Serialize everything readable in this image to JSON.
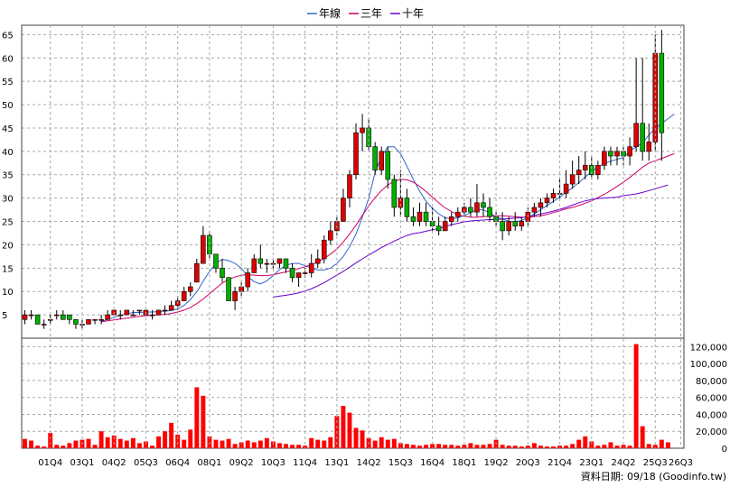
{
  "chart_data": {
    "type": "candlestick",
    "legend": [
      {
        "label": "年線",
        "color": "#3366cc"
      },
      {
        "label": "三年",
        "color": "#cc0066"
      },
      {
        "label": "十年",
        "color": "#6600cc"
      }
    ],
    "price_axis": {
      "ylim": [
        0,
        67
      ],
      "ticks": [
        5,
        10,
        15,
        20,
        25,
        30,
        35,
        40,
        45,
        50,
        55,
        60,
        65
      ]
    },
    "volume_axis": {
      "ylim": [
        0,
        130000
      ],
      "ticks": [
        "0",
        "20,000",
        "40,000",
        "60,000",
        "80,000",
        "100,000",
        "120,000"
      ],
      "tick_values": [
        0,
        20000,
        40000,
        60000,
        80000,
        100000,
        120000
      ]
    },
    "x_tick_labels": [
      "01Q4",
      "03Q1",
      "04Q2",
      "05Q3",
      "06Q4",
      "08Q1",
      "09Q2",
      "10Q3",
      "11Q4",
      "13Q1",
      "14Q2",
      "15Q3",
      "16Q4",
      "18Q1",
      "19Q2",
      "20Q3",
      "21Q4",
      "23Q1",
      "24Q2",
      "25Q3",
      "26Q3"
    ],
    "x_tick_quarters": [
      4,
      9,
      14,
      19,
      24,
      29,
      34,
      39,
      44,
      49,
      54,
      59,
      64,
      69,
      74,
      79,
      84,
      89,
      94,
      99,
      103
    ],
    "candles": [
      [
        4,
        6,
        3,
        5
      ],
      [
        5,
        6,
        4,
        5
      ],
      [
        5,
        5,
        3,
        3
      ],
      [
        3,
        4,
        2,
        3
      ],
      [
        4,
        5,
        3,
        4
      ],
      [
        5,
        6,
        4,
        5
      ],
      [
        5,
        6,
        4,
        4
      ],
      [
        5,
        5,
        3,
        4
      ],
      [
        4,
        4,
        2,
        3
      ],
      [
        3,
        4,
        2,
        3
      ],
      [
        3,
        4,
        3,
        4
      ],
      [
        4,
        4,
        3,
        4
      ],
      [
        4,
        5,
        3,
        4
      ],
      [
        4,
        6,
        4,
        5
      ],
      [
        5,
        6,
        5,
        6
      ],
      [
        5,
        6,
        4,
        5
      ],
      [
        5,
        6,
        5,
        6
      ],
      [
        5,
        6,
        5,
        5
      ],
      [
        6,
        6,
        5,
        6
      ],
      [
        5,
        6,
        5,
        6
      ],
      [
        5,
        6,
        4,
        5
      ],
      [
        5,
        6,
        5,
        6
      ],
      [
        6,
        7,
        5,
        6
      ],
      [
        6,
        8,
        6,
        7
      ],
      [
        7,
        9,
        6,
        8
      ],
      [
        8,
        11,
        8,
        10
      ],
      [
        10,
        12,
        9,
        11
      ],
      [
        12,
        17,
        12,
        16
      ],
      [
        16,
        24,
        16,
        22
      ],
      [
        22,
        23,
        17,
        18
      ],
      [
        18,
        18,
        14,
        15
      ],
      [
        15,
        17,
        12,
        13
      ],
      [
        13,
        13,
        8,
        8
      ],
      [
        8,
        11,
        6,
        10
      ],
      [
        10,
        12,
        9,
        11
      ],
      [
        11,
        15,
        10,
        14
      ],
      [
        14,
        18,
        14,
        17
      ],
      [
        17,
        20,
        15,
        16
      ],
      [
        16,
        17,
        14,
        16
      ],
      [
        16,
        17,
        15,
        16
      ],
      [
        16,
        17,
        15,
        17
      ],
      [
        17,
        17,
        14,
        15
      ],
      [
        15,
        16,
        12,
        13
      ],
      [
        13,
        14,
        11,
        14
      ],
      [
        14,
        15,
        13,
        14
      ],
      [
        14,
        18,
        13,
        16
      ],
      [
        16,
        19,
        15,
        17
      ],
      [
        17,
        22,
        16,
        21
      ],
      [
        21,
        25,
        20,
        23
      ],
      [
        23,
        26,
        22,
        25
      ],
      [
        25,
        32,
        25,
        30
      ],
      [
        30,
        36,
        28,
        35
      ],
      [
        35,
        46,
        34,
        44
      ],
      [
        44,
        48,
        40,
        45
      ],
      [
        45,
        47,
        40,
        41
      ],
      [
        41,
        42,
        35,
        36
      ],
      [
        36,
        41,
        35,
        40
      ],
      [
        40,
        41,
        32,
        34
      ],
      [
        34,
        35,
        26,
        28
      ],
      [
        28,
        36,
        26,
        30
      ],
      [
        30,
        32,
        25,
        26
      ],
      [
        26,
        28,
        24,
        25
      ],
      [
        25,
        29,
        24,
        27
      ],
      [
        27,
        29,
        24,
        25
      ],
      [
        25,
        28,
        23,
        24
      ],
      [
        24,
        26,
        22,
        23
      ],
      [
        23,
        26,
        23,
        25
      ],
      [
        25,
        27,
        24,
        26
      ],
      [
        26,
        28,
        25,
        27
      ],
      [
        27,
        29,
        26,
        28
      ],
      [
        28,
        30,
        26,
        27
      ],
      [
        27,
        33,
        26,
        29
      ],
      [
        29,
        31,
        26,
        28
      ],
      [
        28,
        30,
        25,
        26
      ],
      [
        26,
        27,
        24,
        25
      ],
      [
        25,
        27,
        21,
        23
      ],
      [
        23,
        26,
        22,
        25
      ],
      [
        25,
        27,
        23,
        24
      ],
      [
        24,
        26,
        23,
        25
      ],
      [
        25,
        28,
        24,
        27
      ],
      [
        27,
        29,
        26,
        28
      ],
      [
        28,
        30,
        26,
        29
      ],
      [
        29,
        31,
        28,
        30
      ],
      [
        30,
        32,
        29,
        31
      ],
      [
        31,
        34,
        30,
        31
      ],
      [
        31,
        36,
        30,
        33
      ],
      [
        33,
        38,
        32,
        35
      ],
      [
        35,
        39,
        33,
        36
      ],
      [
        36,
        40,
        34,
        37
      ],
      [
        37,
        39,
        34,
        35
      ],
      [
        35,
        38,
        34,
        37
      ],
      [
        37,
        41,
        36,
        40
      ],
      [
        40,
        41,
        37,
        39
      ],
      [
        39,
        41,
        37,
        40
      ],
      [
        40,
        41,
        37,
        39
      ],
      [
        39,
        43,
        37,
        41
      ],
      [
        41,
        60,
        40,
        46
      ],
      [
        46,
        60,
        38,
        40
      ],
      [
        40,
        46,
        38,
        42
      ],
      [
        42,
        65,
        40,
        61
      ],
      [
        61,
        66,
        38,
        44
      ]
    ],
    "volume": [
      11000,
      9000,
      3000,
      2000,
      18000,
      4000,
      3000,
      6000,
      9000,
      10000,
      11000,
      4000,
      20000,
      13000,
      15000,
      11000,
      9000,
      12000,
      6000,
      8000,
      3000,
      14000,
      20000,
      30000,
      16000,
      10000,
      22000,
      72000,
      62000,
      14000,
      10000,
      9000,
      11000,
      5000,
      7000,
      9000,
      7000,
      9000,
      12000,
      8000,
      6000,
      5000,
      4000,
      4000,
      3000,
      12000,
      10000,
      9000,
      13000,
      38000,
      50000,
      42000,
      24000,
      21000,
      12000,
      9000,
      13000,
      10000,
      11000,
      6000,
      5000,
      4000,
      3000,
      4000,
      5000,
      5000,
      4000,
      4000,
      3000,
      4000,
      6000,
      4000,
      4000,
      5000,
      10000,
      4000,
      3000,
      3000,
      2000,
      3000,
      6000,
      3000,
      2000,
      2000,
      3000,
      3000,
      5000,
      10000,
      14000,
      8000,
      3000,
      4000,
      7000,
      3000,
      4000,
      3000,
      123000,
      26000,
      5000,
      4000,
      10000,
      7000
    ],
    "series": [
      {
        "name": "年線",
        "color": "#3366cc",
        "start": 12,
        "values": [
          3.6,
          4.0,
          4.5,
          4.9,
          5.2,
          5.5,
          5.5,
          5.6,
          5.6,
          5.7,
          5.8,
          5.9,
          6.3,
          7.0,
          8.3,
          9.9,
          12.2,
          14.3,
          16.0,
          16.9,
          16.6,
          16.0,
          15.0,
          13.2,
          12.1,
          11.6,
          12.3,
          13.4,
          14.7,
          15.6,
          16.0,
          16.0,
          15.5,
          15.0,
          14.6,
          14.6,
          15.0,
          16.0,
          17.5,
          19.6,
          22.3,
          25.9,
          30.0,
          35.5,
          38.9,
          41.0,
          41.0,
          39.5,
          36.8,
          34.0,
          31.5,
          29.3,
          27.8,
          26.6,
          25.8,
          25.5,
          25.8,
          26.2,
          26.9,
          27.5,
          27.5,
          26.8,
          26.0,
          25.5,
          25.0,
          24.9,
          25.2,
          25.8,
          26.6,
          27.5,
          28.4,
          29.3,
          30.2,
          31.2,
          32.2,
          33.3,
          34.5,
          35.7,
          36.6,
          37.4,
          37.9,
          38.3,
          38.7,
          40.0,
          41.0,
          41.8,
          43.5,
          45.0,
          46.0,
          47.0,
          48.0
        ]
      },
      {
        "name": "三年",
        "color": "#cc0066",
        "start": 12,
        "values": [
          3.5,
          3.7,
          3.9,
          4.1,
          4.3,
          4.5,
          4.7,
          4.8,
          4.9,
          5.0,
          5.1,
          5.3,
          5.6,
          6.0,
          6.6,
          7.4,
          8.4,
          9.5,
          10.7,
          11.8,
          12.6,
          13.1,
          13.5,
          13.6,
          13.5,
          13.4,
          13.4,
          13.6,
          13.9,
          14.2,
          14.5,
          14.9,
          15.3,
          15.8,
          16.3,
          17.1,
          18.0,
          19.1,
          20.6,
          22.3,
          24.2,
          26.3,
          28.3,
          30.1,
          31.6,
          32.8,
          33.6,
          34.0,
          33.9,
          33.4,
          32.5,
          31.4,
          30.2,
          29.0,
          27.9,
          27.1,
          26.5,
          26.1,
          25.9,
          25.9,
          26.0,
          26.1,
          26.2,
          26.2,
          26.1,
          26.0,
          25.9,
          25.9,
          26.0,
          26.2,
          26.5,
          26.9,
          27.3,
          27.7,
          28.0,
          28.4,
          28.9,
          29.4,
          30.1,
          30.8,
          31.6,
          32.5,
          33.4,
          34.4,
          35.5,
          36.6,
          37.5,
          38.0,
          38.5,
          39.0,
          39.5
        ]
      },
      {
        "name": "十年",
        "color": "#6600cc",
        "start": 39,
        "values": [
          8.8,
          9.0,
          9.2,
          9.4,
          9.7,
          10.1,
          10.6,
          11.2,
          11.9,
          12.7,
          13.5,
          14.3,
          15.2,
          16.1,
          17.0,
          17.8,
          18.6,
          19.4,
          20.1,
          20.8,
          21.4,
          22.0,
          22.4,
          22.6,
          22.9,
          23.2,
          23.5,
          23.9,
          24.3,
          24.6,
          24.9,
          25.1,
          25.2,
          25.3,
          25.4,
          25.4,
          25.5,
          25.6,
          25.7,
          25.8,
          26.0,
          26.3,
          26.6,
          26.9,
          27.2,
          27.6,
          28.0,
          28.5,
          29.0,
          29.4,
          29.7,
          29.9,
          30.0,
          30.1,
          30.2,
          30.5,
          30.7,
          30.9,
          31.2,
          31.6,
          32.0,
          32.4,
          32.8
        ]
      }
    ]
  },
  "footer": {
    "source": "資料日期: 09/18 (Goodinfo.tw)"
  }
}
